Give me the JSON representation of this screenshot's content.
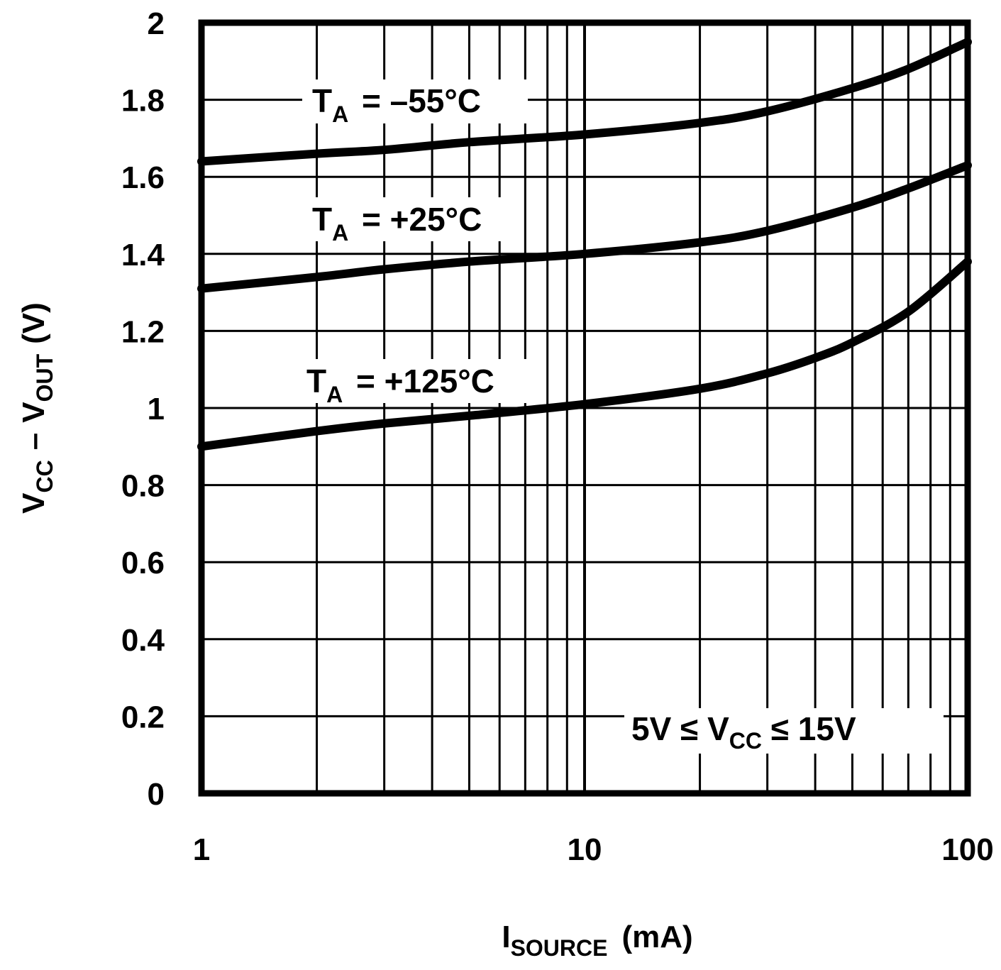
{
  "chart_data": {
    "type": "line",
    "x_scale": "log",
    "xlim": [
      1,
      100
    ],
    "ylim": [
      0,
      2
    ],
    "grid": true,
    "x_ticks": [
      "1",
      "10",
      "100"
    ],
    "y_ticks": [
      "0",
      "0.2",
      "0.4",
      "0.6",
      "0.8",
      "1",
      "1.2",
      "1.4",
      "1.6",
      "1.8",
      "2"
    ],
    "xlabel": {
      "main": "I",
      "sub": "SOURCE",
      "unit": "(mA)"
    },
    "ylabel": {
      "v1": "V",
      "v1_sub": "CC",
      "dash": "–",
      "v2": "V",
      "v2_sub": "OUT",
      "unit": "(V)"
    },
    "condition": {
      "left": "5V ≤ V",
      "sub": "CC",
      "right": " ≤ 15V"
    },
    "series": [
      {
        "name": "TA = -55°C",
        "label_main": "T",
        "label_sub": "A",
        "label_rest": " = –55°C",
        "x": [
          1,
          2,
          3,
          5,
          10,
          20,
          30,
          50,
          70,
          100
        ],
        "values": [
          1.64,
          1.66,
          1.67,
          1.69,
          1.71,
          1.74,
          1.77,
          1.83,
          1.88,
          1.95
        ]
      },
      {
        "name": "TA = +25°C",
        "label_main": "T",
        "label_sub": "A",
        "label_rest": " = +25°C",
        "x": [
          1,
          2,
          3,
          5,
          10,
          20,
          30,
          50,
          70,
          100
        ],
        "values": [
          1.31,
          1.34,
          1.36,
          1.38,
          1.4,
          1.43,
          1.46,
          1.52,
          1.57,
          1.63
        ]
      },
      {
        "name": "TA = +125°C",
        "label_main": "T",
        "label_sub": "A",
        "label_rest": " = +125°C",
        "x": [
          1,
          2,
          3,
          5,
          10,
          20,
          30,
          40,
          50,
          70,
          100
        ],
        "values": [
          0.9,
          0.94,
          0.96,
          0.98,
          1.01,
          1.05,
          1.09,
          1.13,
          1.17,
          1.25,
          1.38
        ]
      }
    ]
  }
}
